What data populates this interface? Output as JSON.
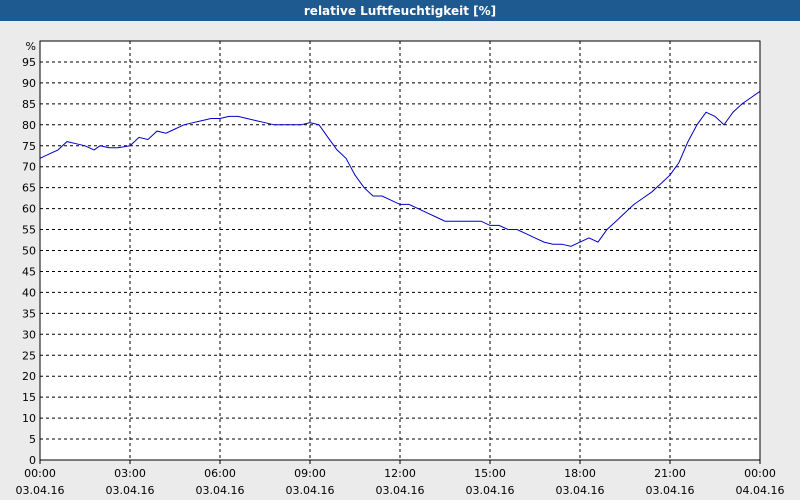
{
  "title": "relative Luftfeuchtigkeit [%]",
  "colors": {
    "title_bg": "#1e5a90",
    "background": "#ebebeb",
    "plot_bg": "#ffffff",
    "line": "#0000c8",
    "grid": "#000000"
  },
  "chart_data": {
    "type": "line",
    "title": "relative Luftfeuchtigkeit [%]",
    "ylabel": "%",
    "xlabel": "",
    "ylim": [
      0,
      100
    ],
    "xlim": [
      0,
      24
    ],
    "grid": true,
    "y_ticks": [
      0,
      5,
      10,
      15,
      20,
      25,
      30,
      35,
      40,
      45,
      50,
      55,
      60,
      65,
      70,
      75,
      80,
      85,
      90,
      95
    ],
    "x_ticks": [
      {
        "x": 0,
        "time": "00:00",
        "date": "03.04.16"
      },
      {
        "x": 3,
        "time": "03:00",
        "date": "03.04.16"
      },
      {
        "x": 6,
        "time": "06:00",
        "date": "03.04.16"
      },
      {
        "x": 9,
        "time": "09:00",
        "date": "03.04.16"
      },
      {
        "x": 12,
        "time": "12:00",
        "date": "03.04.16"
      },
      {
        "x": 15,
        "time": "15:00",
        "date": "03.04.16"
      },
      {
        "x": 18,
        "time": "18:00",
        "date": "03.04.16"
      },
      {
        "x": 21,
        "time": "21:00",
        "date": "03.04.16"
      },
      {
        "x": 24,
        "time": "00:00",
        "date": "04.04.16"
      }
    ],
    "series": [
      {
        "x": [
          0,
          0.3,
          0.6,
          0.9,
          1.2,
          1.5,
          1.8,
          2.0,
          2.3,
          2.6,
          3.0,
          3.3,
          3.6,
          3.9,
          4.2,
          4.5,
          4.8,
          5.1,
          5.4,
          5.7,
          6.0,
          6.3,
          6.6,
          6.9,
          7.2,
          7.5,
          7.8,
          8.1,
          8.4,
          8.7,
          9.0,
          9.3,
          9.6,
          9.9,
          10.2,
          10.5,
          10.8,
          11.1,
          11.4,
          11.7,
          12.0,
          12.3,
          12.6,
          12.9,
          13.2,
          13.5,
          13.8,
          14.1,
          14.4,
          14.7,
          15.0,
          15.3,
          15.6,
          15.9,
          16.2,
          16.5,
          16.8,
          17.1,
          17.4,
          17.7,
          18.0,
          18.3,
          18.6,
          18.9,
          19.2,
          19.5,
          19.8,
          20.1,
          20.4,
          20.7,
          21.0,
          21.3,
          21.6,
          21.9,
          22.2,
          22.5,
          22.8,
          23.1,
          23.4,
          23.7,
          24.0
        ],
        "values": [
          72,
          73,
          74,
          76,
          75.5,
          75,
          74,
          75,
          74.5,
          74.5,
          75,
          77,
          76.5,
          78.5,
          78,
          79,
          80,
          80.5,
          81,
          81.5,
          81.5,
          82,
          82,
          81.5,
          81,
          80.5,
          80,
          80,
          80,
          80,
          80.5,
          80,
          77,
          74,
          72,
          68,
          65,
          63,
          63,
          62,
          61,
          61,
          60,
          59,
          58,
          57,
          57,
          57,
          57,
          57,
          56,
          56,
          55,
          55,
          54,
          53,
          52,
          51.5,
          51.5,
          51,
          52,
          53,
          52,
          55,
          57,
          59,
          61,
          62.5,
          64,
          66,
          68,
          71,
          76,
          80,
          83,
          82,
          80,
          83,
          85,
          86.5,
          88
        ]
      }
    ]
  }
}
